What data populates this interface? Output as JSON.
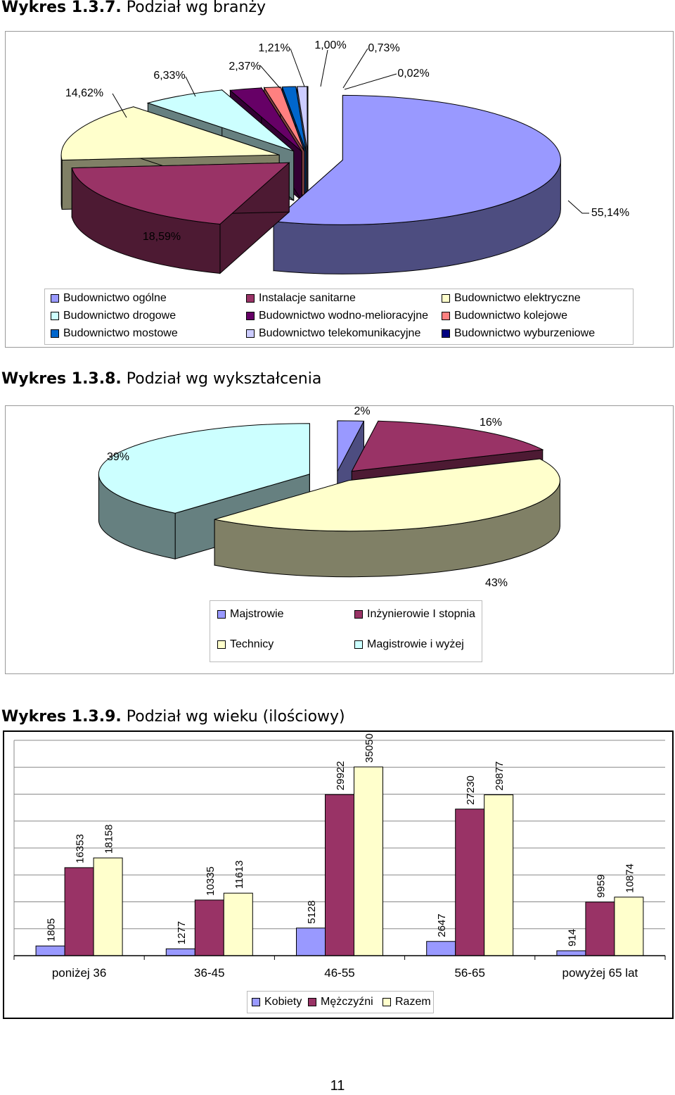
{
  "page_number": "11",
  "chart_data": [
    {
      "type": "pie",
      "title_bold": "Wykres 1.3.7.",
      "title_rest": " Podział wg branży",
      "slices": [
        {
          "label": "Budownictwo ogólne",
          "value": 55.14,
          "display": "55,14%",
          "color": "#9999FF"
        },
        {
          "label": "Instalacje sanitarne",
          "value": 18.59,
          "display": "18,59%",
          "color": "#993366"
        },
        {
          "label": "Budownictwo elektryczne",
          "value": 14.62,
          "display": "14,62%",
          "color": "#FFFFCC"
        },
        {
          "label": "Budownictwo drogowe",
          "value": 6.33,
          "display": "6,33%",
          "color": "#CCFFFF"
        },
        {
          "label": "Budownictwo wodno-melioracyjne",
          "value": 2.37,
          "display": "2,37%",
          "color": "#660066"
        },
        {
          "label": "Budownictwo kolejowe",
          "value": 1.21,
          "display": "1,21%",
          "color": "#FF8080"
        },
        {
          "label": "Budownictwo mostowe",
          "value": 1.0,
          "display": "1,00%",
          "color": "#0066CC"
        },
        {
          "label": "Budownictwo telekomunikacyjne",
          "value": 0.73,
          "display": "0,73%",
          "color": "#CCCCFF"
        },
        {
          "label": "Budownictwo wyburzeniowe",
          "value": 0.02,
          "display": "0,02%",
          "color": "#000080"
        }
      ],
      "legend_placement": "bottom"
    },
    {
      "type": "pie",
      "title_bold": "Wykres 1.3.8.",
      "title_rest": " Podział wg wykształcenia",
      "slices": [
        {
          "label": "Majstrowie",
          "value": 2,
          "display": "2%",
          "color": "#9999FF"
        },
        {
          "label": "Inżynierowie I stopnia",
          "value": 16,
          "display": "16%",
          "color": "#993366"
        },
        {
          "label": "Technicy",
          "value": 43,
          "display": "43%",
          "color": "#FFFFCC"
        },
        {
          "label": "Magistrowie i wyżej",
          "value": 39,
          "display": "39%",
          "color": "#CCFFFF"
        }
      ],
      "legend_placement": "bottom"
    },
    {
      "type": "bar",
      "title_bold": "Wykres 1.3.9.",
      "title_rest": " Podział wg wieku (ilościowy)",
      "categories": [
        "poniżej 36",
        "36-45",
        "46-55",
        "56-65",
        "powyżej 65 lat"
      ],
      "series": [
        {
          "name": "Kobiety",
          "color": "#9999FF",
          "values": [
            1805,
            1277,
            5128,
            2647,
            914
          ]
        },
        {
          "name": "Mężczyźni",
          "color": "#993366",
          "values": [
            16353,
            10335,
            29922,
            27230,
            9959
          ]
        },
        {
          "name": "Razem",
          "color": "#FFFFCC",
          "values": [
            18158,
            11613,
            35050,
            29877,
            10874
          ]
        }
      ],
      "ylim": [
        0,
        40000
      ],
      "grid": true,
      "legend_placement": "bottom"
    }
  ]
}
